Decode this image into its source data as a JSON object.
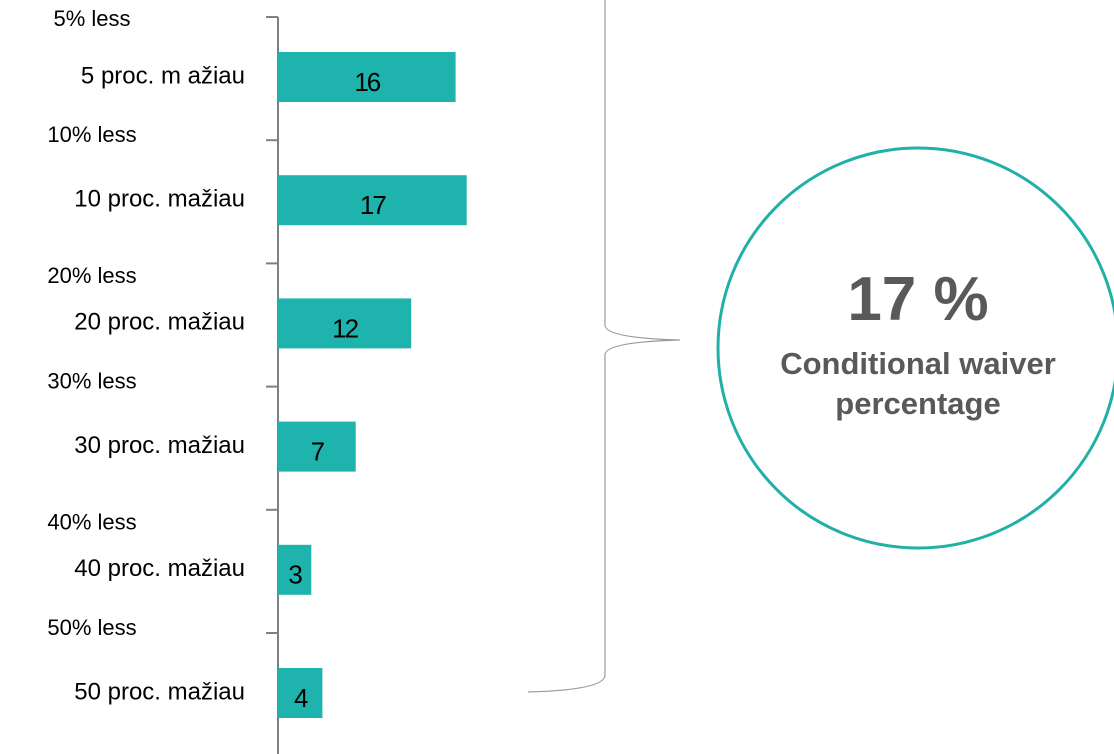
{
  "chart_data": {
    "type": "hbar",
    "categories": [
      "5 proc. m ažiau",
      "10 proc. mažiau",
      "20 proc. mažiau",
      "30 proc. mažiau",
      "40 proc. mažiau",
      "50 proc. mažiau"
    ],
    "category_translations": [
      "5% less",
      "10% less",
      "20% less",
      "30% less",
      "40% less",
      "50% less"
    ],
    "values": [
      16,
      17,
      12,
      7,
      3,
      4
    ],
    "color": "#1fb3ad",
    "annotation": {
      "value": "17 %",
      "text": "Conditional waiver percentage"
    }
  }
}
